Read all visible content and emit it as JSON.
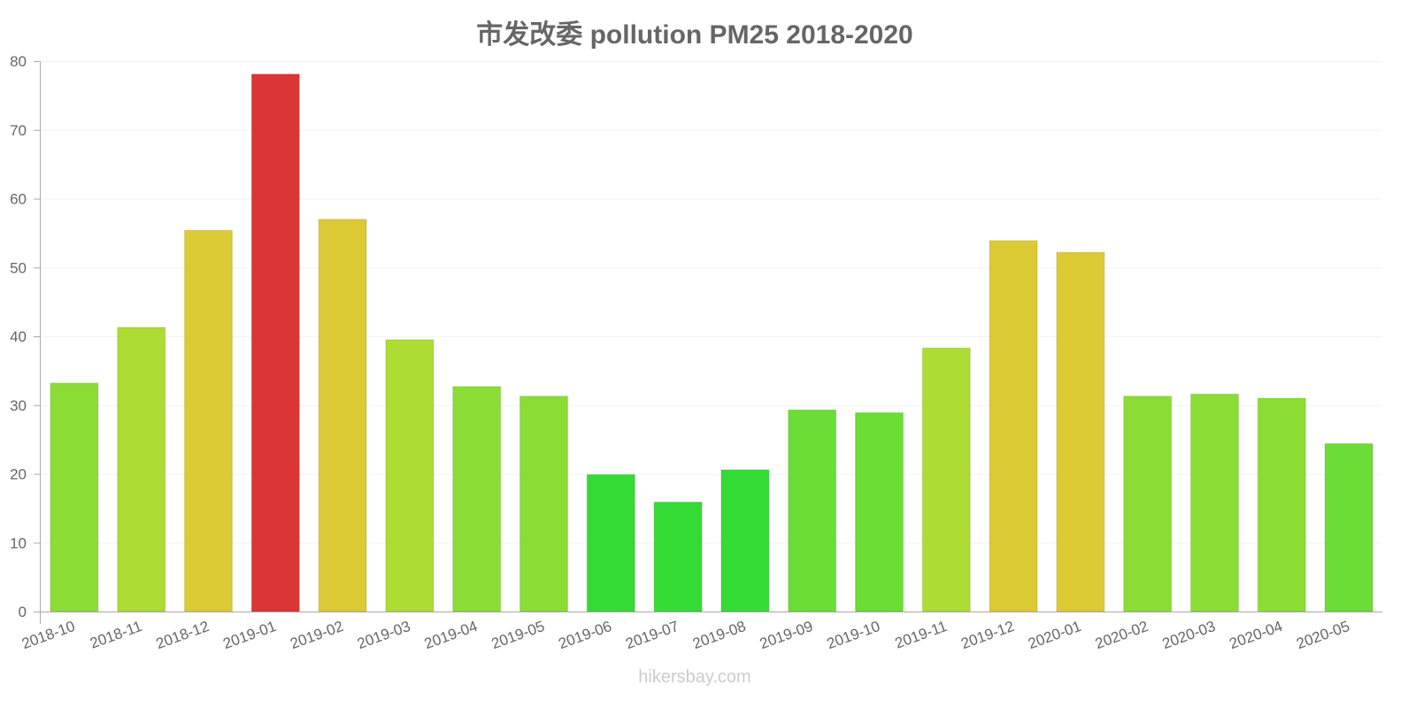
{
  "title": "市发改委 pollution PM25 2018-2020",
  "watermark": "hikersbay.com",
  "chart_data": {
    "type": "bar",
    "title": "市发改委 pollution PM25 2018-2020",
    "xlabel": "",
    "ylabel": "",
    "ylim": [
      0,
      80
    ],
    "yticks": [
      0,
      10,
      20,
      30,
      40,
      50,
      60,
      70,
      80
    ],
    "grid": true,
    "legend": null,
    "categories": [
      "2018-10",
      "2018-11",
      "2018-12",
      "2019-01",
      "2019-02",
      "2019-03",
      "2019-04",
      "2019-05",
      "2019-06",
      "2019-07",
      "2019-08",
      "2019-09",
      "2019-10",
      "2019-11",
      "2019-12",
      "2020-01",
      "2020-02",
      "2020-03",
      "2020-04",
      "2020-05"
    ],
    "values": [
      33.2,
      41.3,
      55.4,
      78.1,
      57.0,
      39.5,
      32.7,
      31.3,
      19.9,
      15.9,
      20.6,
      29.3,
      28.9,
      38.3,
      53.9,
      52.2,
      31.3,
      31.6,
      31.0,
      24.4
    ],
    "colors": [
      "#8bdd35",
      "#addc33",
      "#dbca33",
      "#db3535",
      "#dbca33",
      "#addc33",
      "#8bdd35",
      "#8bdd35",
      "#35db35",
      "#35db35",
      "#35db35",
      "#6bdd35",
      "#6bdd35",
      "#addc33",
      "#dbca33",
      "#dbca33",
      "#8bdd35",
      "#8bdd35",
      "#8bdd35",
      "#6bdd35"
    ]
  },
  "colors": {
    "axis": "#aaaaaa",
    "grid": "#f3f3f3",
    "text": "#666666"
  }
}
